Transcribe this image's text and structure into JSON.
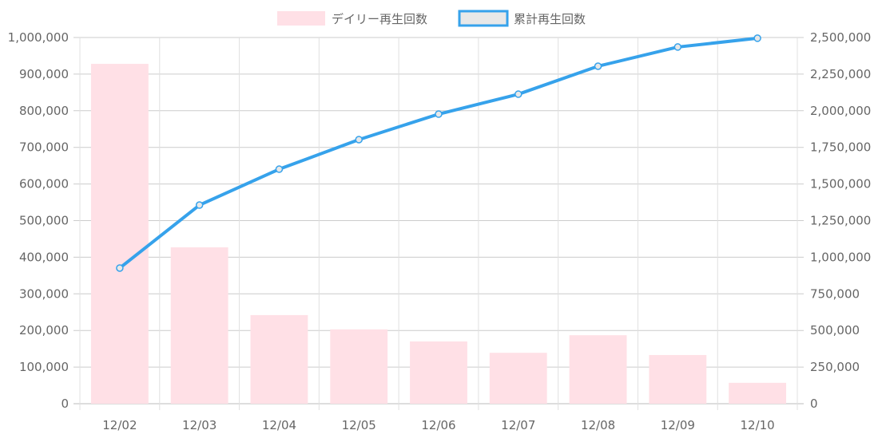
{
  "chart_data": {
    "type": "bar",
    "title": "",
    "categories": [
      "12/02",
      "12/03",
      "12/04",
      "12/05",
      "12/06",
      "12/07",
      "12/08",
      "12/09",
      "12/10"
    ],
    "series": [
      {
        "name": "デイリー再生回数",
        "type": "bar",
        "axis": "left",
        "values": [
          928000,
          427000,
          242000,
          203000,
          170000,
          139000,
          187000,
          133000,
          57000
        ],
        "color": "#FFE0E6"
      },
      {
        "name": "累計再生回数",
        "type": "line",
        "axis": "right",
        "values": [
          926000,
          1356000,
          1601000,
          1803000,
          1977000,
          2113000,
          2304000,
          2435000,
          2495000
        ],
        "color": "#36A2EB"
      }
    ],
    "y_left": {
      "min": 0,
      "max": 1000000,
      "ticks": [
        "0",
        "100,000",
        "200,000",
        "300,000",
        "400,000",
        "500,000",
        "600,000",
        "700,000",
        "800,000",
        "900,000",
        "1,000,000"
      ]
    },
    "y_right": {
      "min": 0,
      "max": 2500000,
      "ticks": [
        "0",
        "250,000",
        "500,000",
        "750,000",
        "1,000,000",
        "1,250,000",
        "1,500,000",
        "1,750,000",
        "2,000,000",
        "2,250,000",
        "2,500,000"
      ]
    },
    "grid": true,
    "legend": "top-center"
  }
}
